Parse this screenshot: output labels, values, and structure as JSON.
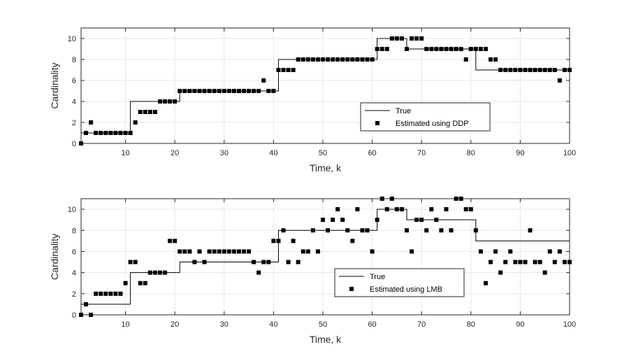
{
  "chart_data": [
    {
      "type": "line",
      "xlabel": "Time, k",
      "ylabel": "Cardinality",
      "xlim": [
        1,
        100
      ],
      "ylim": [
        0,
        11
      ],
      "xticks": [
        10,
        20,
        30,
        40,
        50,
        60,
        70,
        80,
        90,
        100
      ],
      "yticks": [
        0,
        2,
        4,
        6,
        8,
        10
      ],
      "grid": true,
      "legend_position": "bottom-right",
      "series": [
        {
          "name": "True",
          "style": "step-line",
          "x": [
            1,
            2,
            3,
            4,
            5,
            6,
            7,
            8,
            9,
            10,
            11,
            12,
            13,
            14,
            15,
            16,
            17,
            18,
            19,
            20,
            21,
            22,
            23,
            24,
            25,
            26,
            27,
            28,
            29,
            30,
            31,
            32,
            33,
            34,
            35,
            36,
            37,
            38,
            39,
            40,
            41,
            42,
            43,
            44,
            45,
            46,
            47,
            48,
            49,
            50,
            51,
            52,
            53,
            54,
            55,
            56,
            57,
            58,
            59,
            60,
            61,
            62,
            63,
            64,
            65,
            66,
            67,
            68,
            69,
            70,
            71,
            72,
            73,
            74,
            75,
            76,
            77,
            78,
            79,
            80,
            81,
            82,
            83,
            84,
            85,
            86,
            87,
            88,
            89,
            90,
            91,
            92,
            93,
            94,
            95,
            96,
            97,
            98,
            99,
            100
          ],
          "values": [
            1,
            1,
            1,
            1,
            1,
            1,
            1,
            1,
            1,
            1,
            4,
            4,
            4,
            4,
            4,
            4,
            4,
            4,
            4,
            4,
            5,
            5,
            5,
            5,
            5,
            5,
            5,
            5,
            5,
            5,
            5,
            5,
            5,
            5,
            5,
            5,
            5,
            5,
            5,
            5,
            8,
            8,
            8,
            8,
            8,
            8,
            8,
            8,
            8,
            8,
            8,
            8,
            8,
            8,
            8,
            8,
            8,
            8,
            8,
            8,
            10,
            10,
            10,
            10,
            10,
            10,
            9,
            9,
            9,
            9,
            9,
            9,
            9,
            9,
            9,
            9,
            9,
            9,
            9,
            9,
            7,
            7,
            7,
            7,
            7,
            7,
            7,
            7,
            7,
            7,
            7,
            7,
            7,
            7,
            7,
            7,
            7,
            7,
            7,
            7
          ]
        },
        {
          "name": "Estimated using DDP",
          "style": "square-marker",
          "x": [
            1,
            2,
            3,
            4,
            5,
            6,
            7,
            8,
            9,
            10,
            11,
            12,
            13,
            14,
            15,
            16,
            17,
            18,
            19,
            20,
            21,
            22,
            23,
            24,
            25,
            26,
            27,
            28,
            29,
            30,
            31,
            32,
            33,
            34,
            35,
            36,
            37,
            38,
            39,
            40,
            41,
            42,
            43,
            44,
            45,
            46,
            47,
            48,
            49,
            50,
            51,
            52,
            53,
            54,
            55,
            56,
            57,
            58,
            59,
            60,
            61,
            62,
            63,
            64,
            65,
            66,
            67,
            68,
            69,
            70,
            71,
            72,
            73,
            74,
            75,
            76,
            77,
            78,
            79,
            80,
            81,
            82,
            83,
            84,
            85,
            86,
            87,
            88,
            89,
            90,
            91,
            92,
            93,
            94,
            95,
            96,
            97,
            98,
            99,
            100
          ],
          "values": [
            0,
            1,
            2,
            1,
            1,
            1,
            1,
            1,
            1,
            1,
            1,
            2,
            3,
            3,
            3,
            3,
            4,
            4,
            4,
            4,
            5,
            5,
            5,
            5,
            5,
            5,
            5,
            5,
            5,
            5,
            5,
            5,
            5,
            5,
            5,
            5,
            5,
            6,
            5,
            5,
            7,
            7,
            7,
            7,
            8,
            8,
            8,
            8,
            8,
            8,
            8,
            8,
            8,
            8,
            8,
            8,
            8,
            8,
            8,
            8,
            9,
            9,
            9,
            10,
            10,
            10,
            9,
            10,
            10,
            10,
            9,
            9,
            9,
            9,
            9,
            9,
            9,
            9,
            8,
            9,
            9,
            9,
            9,
            8,
            8,
            7,
            7,
            7,
            7,
            7,
            7,
            7,
            7,
            7,
            7,
            7,
            7,
            6,
            7,
            7
          ]
        }
      ]
    },
    {
      "type": "line",
      "xlabel": "Time, k",
      "ylabel": "Cardinality",
      "xlim": [
        1,
        100
      ],
      "ylim": [
        0,
        11
      ],
      "xticks": [
        10,
        20,
        30,
        40,
        50,
        60,
        70,
        80,
        90,
        100
      ],
      "yticks": [
        0,
        2,
        4,
        6,
        8,
        10
      ],
      "grid": true,
      "legend_position": "bottom-center",
      "series": [
        {
          "name": "True",
          "style": "step-line",
          "x": [
            1,
            2,
            3,
            4,
            5,
            6,
            7,
            8,
            9,
            10,
            11,
            12,
            13,
            14,
            15,
            16,
            17,
            18,
            19,
            20,
            21,
            22,
            23,
            24,
            25,
            26,
            27,
            28,
            29,
            30,
            31,
            32,
            33,
            34,
            35,
            36,
            37,
            38,
            39,
            40,
            41,
            42,
            43,
            44,
            45,
            46,
            47,
            48,
            49,
            50,
            51,
            52,
            53,
            54,
            55,
            56,
            57,
            58,
            59,
            60,
            61,
            62,
            63,
            64,
            65,
            66,
            67,
            68,
            69,
            70,
            71,
            72,
            73,
            74,
            75,
            76,
            77,
            78,
            79,
            80,
            81,
            82,
            83,
            84,
            85,
            86,
            87,
            88,
            89,
            90,
            91,
            92,
            93,
            94,
            95,
            96,
            97,
            98,
            99,
            100
          ],
          "values": [
            1,
            1,
            1,
            1,
            1,
            1,
            1,
            1,
            1,
            1,
            4,
            4,
            4,
            4,
            4,
            4,
            4,
            4,
            4,
            4,
            5,
            5,
            5,
            5,
            5,
            5,
            5,
            5,
            5,
            5,
            5,
            5,
            5,
            5,
            5,
            5,
            5,
            5,
            5,
            5,
            8,
            8,
            8,
            8,
            8,
            8,
            8,
            8,
            8,
            8,
            8,
            8,
            8,
            8,
            8,
            8,
            8,
            8,
            8,
            8,
            10,
            10,
            10,
            10,
            10,
            10,
            9,
            9,
            9,
            9,
            9,
            9,
            9,
            9,
            9,
            9,
            9,
            9,
            9,
            9,
            7,
            7,
            7,
            7,
            7,
            7,
            7,
            7,
            7,
            7,
            7,
            7,
            7,
            7,
            7,
            7,
            7,
            7,
            7,
            7
          ]
        },
        {
          "name": "Estimated using LMB",
          "style": "square-marker",
          "x": [
            1,
            2,
            3,
            4,
            5,
            6,
            7,
            8,
            9,
            10,
            11,
            12,
            13,
            14,
            15,
            16,
            17,
            18,
            19,
            20,
            21,
            22,
            23,
            24,
            25,
            26,
            27,
            28,
            29,
            30,
            31,
            32,
            33,
            34,
            35,
            36,
            37,
            38,
            39,
            40,
            41,
            42,
            43,
            44,
            45,
            46,
            47,
            48,
            49,
            50,
            51,
            52,
            53,
            54,
            55,
            56,
            57,
            58,
            59,
            60,
            61,
            62,
            63,
            64,
            65,
            66,
            67,
            68,
            69,
            70,
            71,
            72,
            73,
            74,
            75,
            76,
            77,
            78,
            79,
            80,
            81,
            82,
            83,
            84,
            85,
            86,
            87,
            88,
            89,
            90,
            91,
            92,
            93,
            94,
            95,
            96,
            97,
            98,
            99,
            100
          ],
          "values": [
            0,
            1,
            0,
            2,
            2,
            2,
            2,
            2,
            2,
            3,
            5,
            5,
            3,
            3,
            4,
            4,
            4,
            4,
            7,
            7,
            6,
            6,
            6,
            5,
            6,
            5,
            6,
            6,
            6,
            6,
            6,
            6,
            6,
            6,
            6,
            5,
            4,
            5,
            5,
            7,
            7,
            8,
            5,
            7,
            5,
            6,
            6,
            8,
            6,
            9,
            8,
            9,
            10,
            9,
            8,
            7,
            10,
            8,
            8,
            6,
            9,
            11,
            10,
            11,
            10,
            10,
            8,
            6,
            9,
            9,
            8,
            10,
            9,
            8,
            10,
            8,
            11,
            11,
            10,
            10,
            8,
            6,
            3,
            5,
            6,
            4,
            5,
            6,
            5,
            5,
            5,
            8,
            5,
            5,
            4,
            6,
            5,
            6,
            5,
            5
          ]
        }
      ]
    }
  ]
}
